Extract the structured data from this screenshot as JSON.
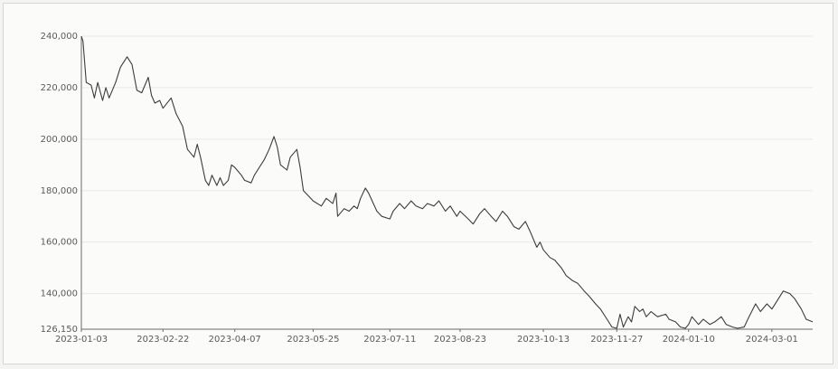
{
  "chart_data": {
    "type": "line",
    "title": "",
    "xlabel": "",
    "ylabel": "",
    "y_ticks": [
      126150,
      140000,
      160000,
      180000,
      200000,
      220000,
      240000
    ],
    "y_tick_labels": [
      "126,150",
      "140,000",
      "160,000",
      "180,000",
      "200,000",
      "220,000",
      "240,000"
    ],
    "ylim": [
      126150,
      240000
    ],
    "x_ticks": [
      "2023-01-03",
      "2023-02-22",
      "2023-04-07",
      "2023-05-25",
      "2023-07-11",
      "2023-08-23",
      "2023-10-13",
      "2023-11-27",
      "2024-01-10",
      "2024-03-01"
    ],
    "xlim": [
      "2023-01-03",
      "2024-03-26"
    ],
    "grid": true,
    "legend": "none",
    "series": [
      {
        "color": "#3c3c3c",
        "points": [
          [
            "2023-01-03",
            240000
          ],
          [
            "2023-01-04",
            238000
          ],
          [
            "2023-01-06",
            222000
          ],
          [
            "2023-01-09",
            221000
          ],
          [
            "2023-01-11",
            216000
          ],
          [
            "2023-01-13",
            222000
          ],
          [
            "2023-01-16",
            215000
          ],
          [
            "2023-01-18",
            220000
          ],
          [
            "2023-01-20",
            216000
          ],
          [
            "2023-01-24",
            222000
          ],
          [
            "2023-01-27",
            228000
          ],
          [
            "2023-01-31",
            232000
          ],
          [
            "2023-02-03",
            229000
          ],
          [
            "2023-02-06",
            219000
          ],
          [
            "2023-02-09",
            218000
          ],
          [
            "2023-02-13",
            224000
          ],
          [
            "2023-02-15",
            217000
          ],
          [
            "2023-02-17",
            214000
          ],
          [
            "2023-02-20",
            215000
          ],
          [
            "2023-02-22",
            212000
          ],
          [
            "2023-02-27",
            216000
          ],
          [
            "2023-03-02",
            210000
          ],
          [
            "2023-03-06",
            205000
          ],
          [
            "2023-03-09",
            196000
          ],
          [
            "2023-03-13",
            193000
          ],
          [
            "2023-03-15",
            198000
          ],
          [
            "2023-03-17",
            193000
          ],
          [
            "2023-03-20",
            184000
          ],
          [
            "2023-03-22",
            182000
          ],
          [
            "2023-03-24",
            186000
          ],
          [
            "2023-03-27",
            182000
          ],
          [
            "2023-03-29",
            185000
          ],
          [
            "2023-03-31",
            182000
          ],
          [
            "2023-04-03",
            184000
          ],
          [
            "2023-04-05",
            190000
          ],
          [
            "2023-04-07",
            189000
          ],
          [
            "2023-04-11",
            186000
          ],
          [
            "2023-04-13",
            184000
          ],
          [
            "2023-04-17",
            183000
          ],
          [
            "2023-04-19",
            186000
          ],
          [
            "2023-04-21",
            188000
          ],
          [
            "2023-04-25",
            192000
          ],
          [
            "2023-04-28",
            196000
          ],
          [
            "2023-05-01",
            201000
          ],
          [
            "2023-05-03",
            197000
          ],
          [
            "2023-05-05",
            190000
          ],
          [
            "2023-05-09",
            188000
          ],
          [
            "2023-05-11",
            193000
          ],
          [
            "2023-05-15",
            196000
          ],
          [
            "2023-05-17",
            189000
          ],
          [
            "2023-05-19",
            180000
          ],
          [
            "2023-05-22",
            178000
          ],
          [
            "2023-05-25",
            176000
          ],
          [
            "2023-05-30",
            174000
          ],
          [
            "2023-06-02",
            177000
          ],
          [
            "2023-06-06",
            175000
          ],
          [
            "2023-06-08",
            179000
          ],
          [
            "2023-06-09",
            170000
          ],
          [
            "2023-06-13",
            173000
          ],
          [
            "2023-06-16",
            172000
          ],
          [
            "2023-06-19",
            174000
          ],
          [
            "2023-06-21",
            173000
          ],
          [
            "2023-06-23",
            177000
          ],
          [
            "2023-06-26",
            181000
          ],
          [
            "2023-06-28",
            179000
          ],
          [
            "2023-07-03",
            172000
          ],
          [
            "2023-07-06",
            170000
          ],
          [
            "2023-07-11",
            169000
          ],
          [
            "2023-07-13",
            172000
          ],
          [
            "2023-07-17",
            175000
          ],
          [
            "2023-07-20",
            173000
          ],
          [
            "2023-07-24",
            176000
          ],
          [
            "2023-07-27",
            174000
          ],
          [
            "2023-07-31",
            173000
          ],
          [
            "2023-08-03",
            175000
          ],
          [
            "2023-08-07",
            174000
          ],
          [
            "2023-08-10",
            176000
          ],
          [
            "2023-08-14",
            172000
          ],
          [
            "2023-08-17",
            174000
          ],
          [
            "2023-08-21",
            170000
          ],
          [
            "2023-08-23",
            172000
          ],
          [
            "2023-08-28",
            169000
          ],
          [
            "2023-08-31",
            167000
          ],
          [
            "2023-09-04",
            171000
          ],
          [
            "2023-09-07",
            173000
          ],
          [
            "2023-09-11",
            170000
          ],
          [
            "2023-09-14",
            168000
          ],
          [
            "2023-09-18",
            172000
          ],
          [
            "2023-09-21",
            170000
          ],
          [
            "2023-09-25",
            166000
          ],
          [
            "2023-09-28",
            165000
          ],
          [
            "2023-10-02",
            168000
          ],
          [
            "2023-10-05",
            164000
          ],
          [
            "2023-10-09",
            158000
          ],
          [
            "2023-10-11",
            160000
          ],
          [
            "2023-10-13",
            157000
          ],
          [
            "2023-10-17",
            154000
          ],
          [
            "2023-10-20",
            153000
          ],
          [
            "2023-10-24",
            150000
          ],
          [
            "2023-10-27",
            147000
          ],
          [
            "2023-10-31",
            145000
          ],
          [
            "2023-11-03",
            144000
          ],
          [
            "2023-11-07",
            141000
          ],
          [
            "2023-11-10",
            139000
          ],
          [
            "2023-11-14",
            136000
          ],
          [
            "2023-11-17",
            134000
          ],
          [
            "2023-11-21",
            130000
          ],
          [
            "2023-11-24",
            127000
          ],
          [
            "2023-11-27",
            126500
          ],
          [
            "2023-11-29",
            132000
          ],
          [
            "2023-12-01",
            127000
          ],
          [
            "2023-12-04",
            131000
          ],
          [
            "2023-12-06",
            129000
          ],
          [
            "2023-12-08",
            135000
          ],
          [
            "2023-12-11",
            133000
          ],
          [
            "2023-12-13",
            134000
          ],
          [
            "2023-12-15",
            131000
          ],
          [
            "2023-12-18",
            133000
          ],
          [
            "2023-12-20",
            132000
          ],
          [
            "2023-12-22",
            131000
          ],
          [
            "2023-12-27",
            132000
          ],
          [
            "2023-12-29",
            130000
          ],
          [
            "2024-01-02",
            129000
          ],
          [
            "2024-01-05",
            127000
          ],
          [
            "2024-01-08",
            126500
          ],
          [
            "2024-01-10",
            128000
          ],
          [
            "2024-01-12",
            131000
          ],
          [
            "2024-01-16",
            128000
          ],
          [
            "2024-01-19",
            130000
          ],
          [
            "2024-01-23",
            128000
          ],
          [
            "2024-01-26",
            129000
          ],
          [
            "2024-01-30",
            131000
          ],
          [
            "2024-02-02",
            128000
          ],
          [
            "2024-02-06",
            127000
          ],
          [
            "2024-02-09",
            126500
          ],
          [
            "2024-02-13",
            127000
          ],
          [
            "2024-02-16",
            131000
          ],
          [
            "2024-02-20",
            136000
          ],
          [
            "2024-02-23",
            133000
          ],
          [
            "2024-02-27",
            136000
          ],
          [
            "2024-03-01",
            134000
          ],
          [
            "2024-03-05",
            138000
          ],
          [
            "2024-03-08",
            141000
          ],
          [
            "2024-03-12",
            140000
          ],
          [
            "2024-03-15",
            138000
          ],
          [
            "2024-03-19",
            134000
          ],
          [
            "2024-03-22",
            130000
          ],
          [
            "2024-03-26",
            129000
          ]
        ]
      }
    ]
  }
}
